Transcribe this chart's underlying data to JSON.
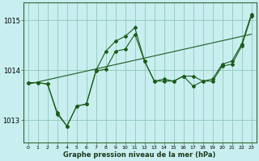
{
  "xlabel": "Graphe pression niveau de la mer (hPa)",
  "background_color": "#c8eef0",
  "grid_color": "#90c8b8",
  "line_color": "#1a5c1a",
  "x_ticks": [
    0,
    1,
    2,
    3,
    4,
    5,
    6,
    7,
    8,
    9,
    10,
    11,
    12,
    13,
    14,
    15,
    16,
    17,
    18,
    19,
    20,
    21,
    22,
    23
  ],
  "xlim": [
    -0.5,
    23.5
  ],
  "ylim": [
    1012.55,
    1015.35
  ],
  "yticks": [
    1013,
    1014,
    1015
  ],
  "line1": [
    1013.75,
    1013.75,
    1013.72,
    1013.12,
    1012.88,
    1013.28,
    1013.32,
    1013.98,
    1014.02,
    1014.38,
    1014.42,
    1014.72,
    1014.18,
    1013.78,
    1013.78,
    1013.78,
    1013.88,
    1013.88,
    1013.78,
    1013.78,
    1014.08,
    1014.12,
    1014.48,
    1015.08
  ],
  "line2_x": [
    0,
    23
  ],
  "line2_y": [
    1013.72,
    1014.72
  ],
  "line3": [
    1013.75,
    1013.75,
    1013.72,
    1013.15,
    1012.88,
    1013.28,
    1013.32,
    1014.0,
    1014.38,
    1014.58,
    1014.68,
    1014.85,
    1014.18,
    1013.78,
    1013.82,
    1013.78,
    1013.88,
    1013.68,
    1013.78,
    1013.82,
    1014.12,
    1014.18,
    1014.52,
    1015.12
  ]
}
